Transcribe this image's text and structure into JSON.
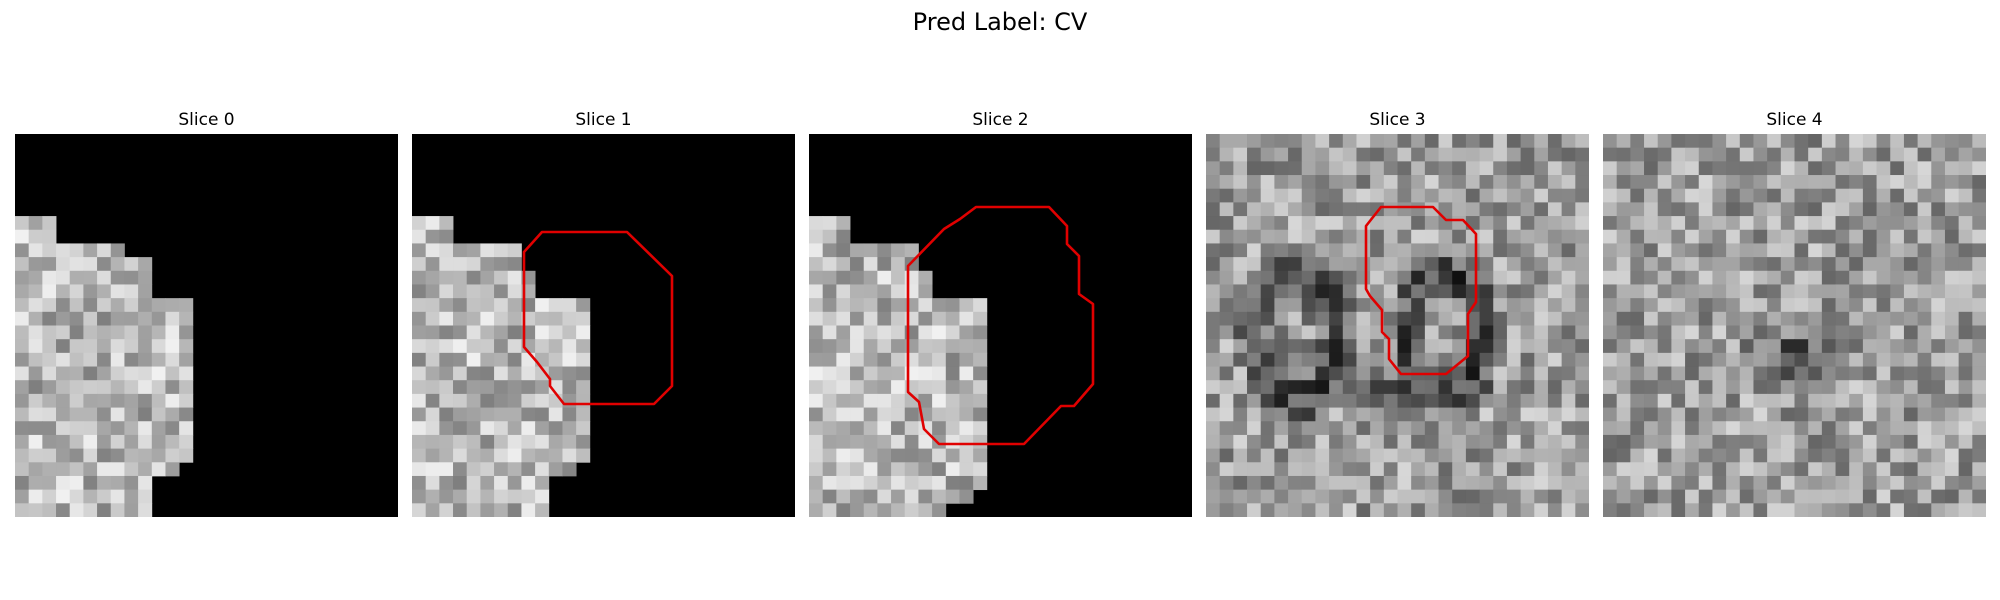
{
  "title": "Pred Label: CV",
  "colors": {
    "contour": "#e00000",
    "background": "#ffffff",
    "masked": "#000000"
  },
  "panels": [
    {
      "title": "Slice 0",
      "has_contour": false
    },
    {
      "title": "Slice 1",
      "has_contour": true
    },
    {
      "title": "Slice 2",
      "has_contour": true
    },
    {
      "title": "Slice 3",
      "has_contour": true
    },
    {
      "title": "Slice 4",
      "has_contour": false
    }
  ]
}
